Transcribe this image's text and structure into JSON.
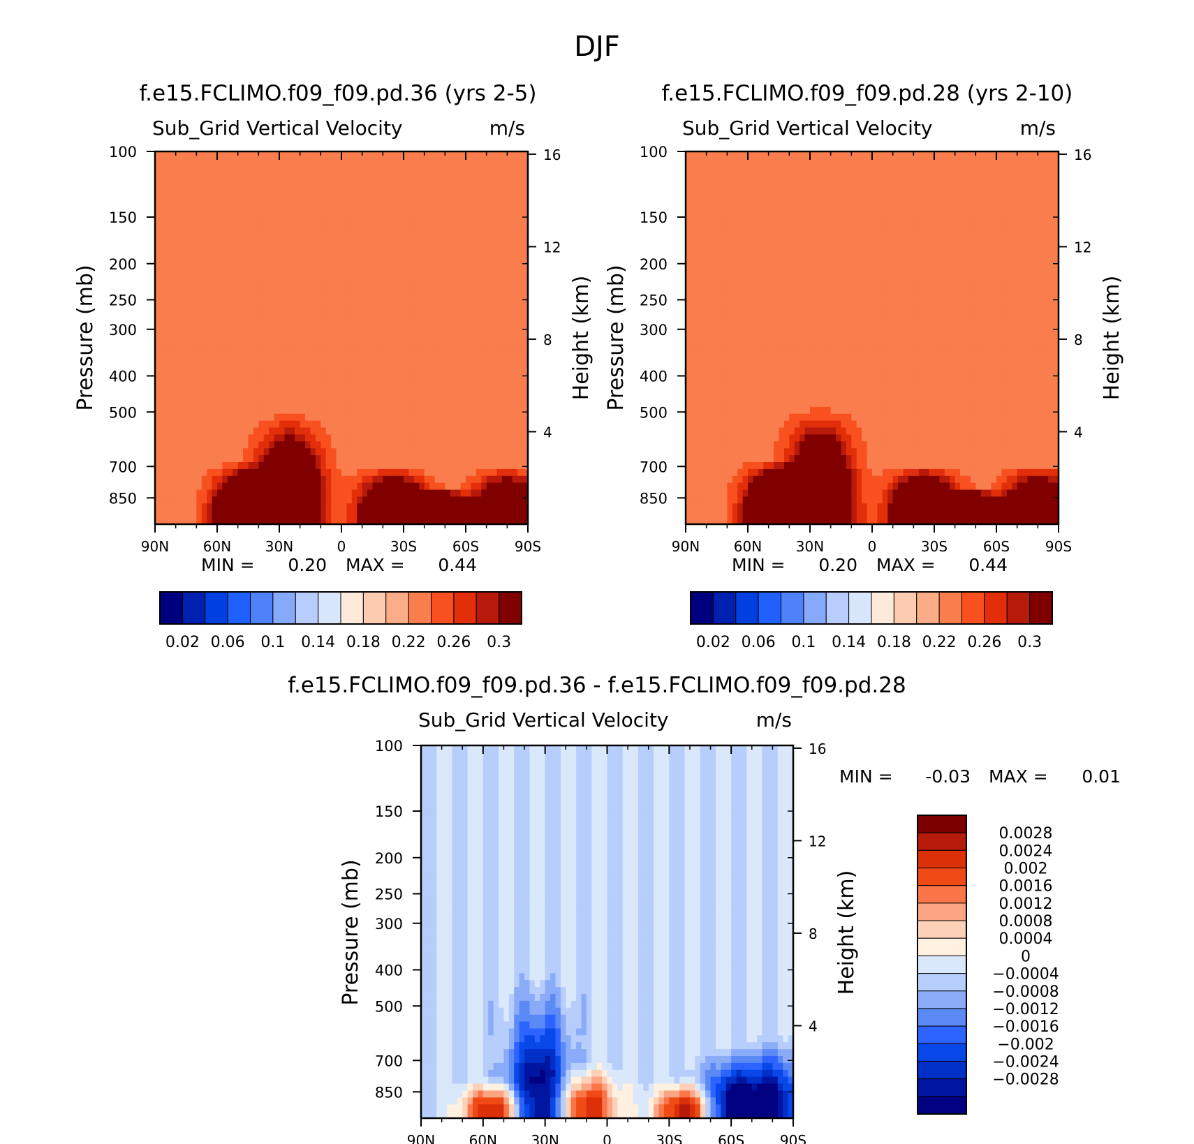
{
  "figure_title": "DJF",
  "chart_data": [
    {
      "type": "heatmap",
      "title": "f.e15.FCLIMO.f09_f09.pd.36 (yrs 2-5)",
      "variable": "Sub_Grid Vertical Velocity",
      "units": "m/s",
      "ylabel": "Pressure (mb)",
      "y2label": "Height (km)",
      "xticks": [
        "90N",
        "60N",
        "30N",
        "0",
        "30S",
        "60S",
        "90S"
      ],
      "xlim": [
        90,
        -90
      ],
      "yticks": [
        100,
        150,
        200,
        250,
        300,
        400,
        500,
        700,
        850
      ],
      "ylim": [
        100,
        1000
      ],
      "y_scale": "log (pressure)",
      "y2ticks": [
        16,
        12,
        8,
        4
      ],
      "min_label": "MIN =",
      "min_value": "0.20",
      "max_label": "MAX =",
      "max_value": "0.44",
      "background_level": 0.22,
      "colorbar": {
        "orientation": "horizontal",
        "colors": [
          "#00007f",
          "#0020b0",
          "#0040e0",
          "#2060ff",
          "#4f82fa",
          "#86a9fb",
          "#b8ccfd",
          "#d8e7fb",
          "#feeadb",
          "#fdcbb0",
          "#fcac87",
          "#fa7d4e",
          "#f9501f",
          "#e22f0a",
          "#b71a0a",
          "#800000"
        ],
        "labels": [
          "0.02",
          "0.06",
          "0.1",
          "0.14",
          "0.18",
          "0.22",
          "0.26",
          "0.3"
        ]
      },
      "features": [
        {
          "lat": 45,
          "p_top": 680,
          "amplitude": 0.3
        },
        {
          "lat": 25,
          "p_top": 500,
          "amplitude": 0.26
        },
        {
          "lat": -25,
          "p_top": 700,
          "amplitude": 0.27
        },
        {
          "lat": -45,
          "p_top": 790,
          "amplitude": 0.29
        },
        {
          "lat": -80,
          "p_top": 700,
          "amplitude": 0.24
        }
      ]
    },
    {
      "type": "heatmap",
      "title": "f.e15.FCLIMO.f09_f09.pd.28 (yrs 2-10)",
      "variable": "Sub_Grid Vertical Velocity",
      "units": "m/s",
      "ylabel": "Pressure (mb)",
      "y2label": "Height (km)",
      "xticks": [
        "90N",
        "60N",
        "30N",
        "0",
        "30S",
        "60S",
        "90S"
      ],
      "xlim": [
        90,
        -90
      ],
      "yticks": [
        100,
        150,
        200,
        250,
        300,
        400,
        500,
        700,
        850
      ],
      "ylim": [
        100,
        1000
      ],
      "y_scale": "log (pressure)",
      "y2ticks": [
        16,
        12,
        8,
        4
      ],
      "min_label": "MIN =",
      "min_value": "0.20",
      "max_label": "MAX =",
      "max_value": "0.44",
      "background_level": 0.22,
      "colorbar": {
        "orientation": "horizontal",
        "colors": [
          "#00007f",
          "#0020b0",
          "#0040e0",
          "#2060ff",
          "#4f82fa",
          "#86a9fb",
          "#b8ccfd",
          "#d8e7fb",
          "#feeadb",
          "#fdcbb0",
          "#fcac87",
          "#fa7d4e",
          "#f9501f",
          "#e22f0a",
          "#b71a0a",
          "#800000"
        ],
        "labels": [
          "0.02",
          "0.06",
          "0.1",
          "0.14",
          "0.18",
          "0.22",
          "0.26",
          "0.3"
        ]
      },
      "features": [
        {
          "lat": 45,
          "p_top": 670,
          "amplitude": 0.31
        },
        {
          "lat": 25,
          "p_top": 480,
          "amplitude": 0.26
        },
        {
          "lat": -25,
          "p_top": 690,
          "amplitude": 0.28
        },
        {
          "lat": -45,
          "p_top": 790,
          "amplitude": 0.29
        },
        {
          "lat": -80,
          "p_top": 690,
          "amplitude": 0.24
        }
      ]
    },
    {
      "type": "heatmap",
      "title": "f.e15.FCLIMO.f09_f09.pd.36 - f.e15.FCLIMO.f09_f09.pd.28",
      "variable": "Sub_Grid Vertical Velocity",
      "units": "m/s",
      "ylabel": "Pressure (mb)",
      "y2label": "Height (km)",
      "xticks": [
        "90N",
        "60N",
        "30N",
        "0",
        "30S",
        "60S",
        "90S"
      ],
      "xlim": [
        90,
        -90
      ],
      "yticks": [
        100,
        150,
        200,
        250,
        300,
        400,
        500,
        700,
        850
      ],
      "ylim": [
        100,
        1000
      ],
      "y_scale": "log (pressure)",
      "y2ticks": [
        16,
        12,
        8,
        4
      ],
      "min_label": "MIN =",
      "min_value": "-0.03",
      "max_label": "MAX =",
      "max_value": "0.01",
      "colorbar": {
        "orientation": "vertical",
        "colors": [
          "#000080",
          "#0015a0",
          "#0030c8",
          "#0848e8",
          "#2d63ff",
          "#5b8af6",
          "#89abf8",
          "#b7cdfb",
          "#d9e8fa",
          "#fff0e0",
          "#fdd1b7",
          "#fca585",
          "#fa7548",
          "#f04a16",
          "#dc3008",
          "#b51a0a",
          "#7c0000"
        ],
        "labels": [
          "0.0028",
          "0.0024",
          "0.002",
          "0.0016",
          "0.0012",
          "0.0008",
          "0.0004",
          "0",
          "-0.0004",
          "-0.0008",
          "-0.0012",
          "-0.0016",
          "-0.002",
          "-0.0024",
          "-0.0028"
        ]
      },
      "features": [
        {
          "lat": 55,
          "p_top": 780,
          "amplitude": 0.0032
        },
        {
          "lat": 33,
          "p_top": 400,
          "amplitude": -0.0032
        },
        {
          "lat": 10,
          "p_top": 700,
          "amplitude": 0.0028
        },
        {
          "lat": -38,
          "p_top": 780,
          "amplitude": 0.0032
        },
        {
          "lat": -60,
          "p_top": 650,
          "amplitude": -0.003
        },
        {
          "lat": -80,
          "p_top": 600,
          "amplitude": -0.0028
        }
      ]
    }
  ]
}
